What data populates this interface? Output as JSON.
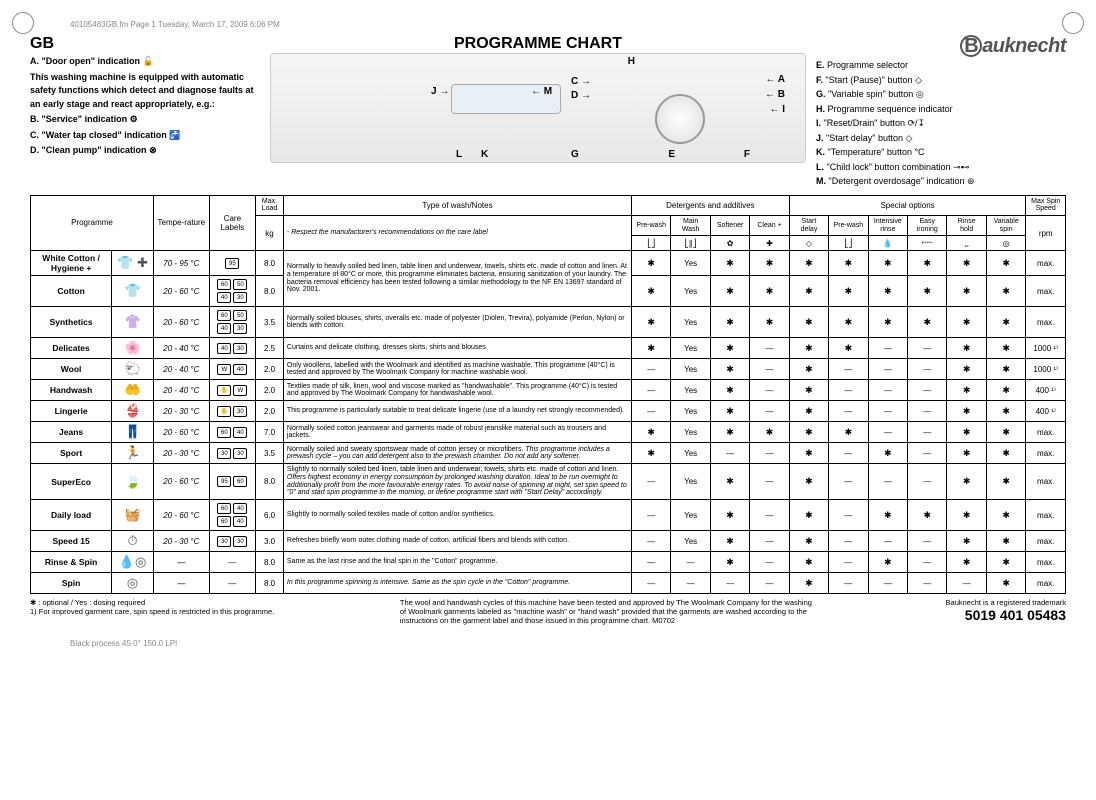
{
  "meta": {
    "header_line": "40105483GB.fm  Page 1  Tuesday, March 17, 2009  6:06 PM",
    "country_code": "GB",
    "title": "PROGRAMME CHART",
    "brand": "Bauknecht",
    "lpi": "Black process 45.0° 150.0 LPI"
  },
  "legend_left": {
    "A": "\"Door open\" indication",
    "intro": "This washing machine is equipped with automatic safety functions which detect and diagnose faults at an early stage and react appropriately, e.g.:",
    "B": "\"Service\" indication",
    "C": "\"Water tap closed\" indication",
    "D": "\"Clean pump\" indication"
  },
  "legend_right": {
    "E": "Programme selector",
    "F": "\"Start (Pause)\" button",
    "G": "\"Variable spin\" button",
    "H": "Programme sequence indicator",
    "I": "\"Reset/Drain\" button",
    "J": "\"Start delay\" button",
    "K": "\"Temperature\" button",
    "L": "\"Child lock\" button combination",
    "M": "\"Detergent overdosage\" indication"
  },
  "table": {
    "headers": {
      "programme": "Programme",
      "temperature": "Tempe-rature",
      "care_labels": "Care Labels",
      "max_load": "Max. Load",
      "max_load_unit": "kg",
      "wash_notes": "Type of wash/Notes",
      "wash_notes_sub": "- Respect the manufacturer's recommendations on the care label",
      "detergents": "Detergents and additives",
      "prewash": "Pre-wash",
      "mainwash": "Main Wash",
      "softener": "Softener",
      "cleanplus": "Clean +",
      "special": "Special options",
      "start_delay": "Start delay",
      "opt_prewash": "Pre-wash",
      "intensive_rinse": "Intensive rinse",
      "easy_ironing": "Easy ironing",
      "rinse_hold": "Rinse hold",
      "variable_spin": "Variable spin",
      "max_spin": "Max Spin Speed",
      "rpm": "rpm"
    },
    "rows": [
      {
        "name": "White Cotton / Hygiene +",
        "icon": "👕 ✚",
        "temp": "70 - 95 °C",
        "care": [
          "95"
        ],
        "load": "8.0",
        "notes": "Normally to heavily soiled bed linen, table linen and underwear, towels, shirts etc. made of cotton and linen.\nAt a temperature of 80°C or more, this programme eliminates bacteria, ensuring sanitization of your laundry. The bacteria removal efficiency has been tested following a similar methodology to the NF EN 13697 standard of Nov. 2001.",
        "cells": [
          "*",
          "Yes",
          "*",
          "*",
          "*",
          "*",
          "*",
          "*",
          "*",
          "*",
          "max."
        ],
        "rowspan": 2
      },
      {
        "name": "Cotton",
        "icon": "👕",
        "temp": "20 - 60 °C",
        "care": [
          "60",
          "50",
          "40",
          "30"
        ],
        "load": "8.0",
        "notes_shared": true,
        "cells": [
          "*",
          "Yes",
          "*",
          "*",
          "*",
          "*",
          "*",
          "*",
          "*",
          "*",
          "max."
        ]
      },
      {
        "name": "Synthetics",
        "icon": "👚",
        "temp": "20 - 60 °C",
        "care": [
          "60",
          "50",
          "40",
          "30"
        ],
        "load": "3.5",
        "notes": "Normally soiled blouses, shirts, overalls etc. made of polyester (Diolen, Trevira), polyamide (Perlon, Nylon) or blends with cotton.",
        "cells": [
          "*",
          "Yes",
          "*",
          "*",
          "*",
          "*",
          "*",
          "*",
          "*",
          "*",
          "max."
        ]
      },
      {
        "name": "Delicates",
        "icon": "🌸",
        "temp": "20 - 40 °C",
        "care": [
          "40",
          "30"
        ],
        "load": "2.5",
        "notes": "Curtains and delicate clothing, dresses skirts, shirts and blouses.",
        "cells": [
          "*",
          "Yes",
          "*",
          "—",
          "*",
          "*",
          "—",
          "—",
          "*",
          "*",
          "1000 ¹⁾"
        ]
      },
      {
        "name": "Wool",
        "icon": "🐑",
        "temp": "20 - 40 °C",
        "care": [
          "W",
          "40"
        ],
        "load": "2.0",
        "notes": "Only woollens, labelled with the Woolmark and identified as machine washable. This programme (40°C) is tested and approved by The Woolmark Company for machine washable wool.",
        "cells": [
          "—",
          "Yes",
          "*",
          "—",
          "*",
          "—",
          "—",
          "—",
          "*",
          "*",
          "1000 ¹⁾"
        ]
      },
      {
        "name": "Handwash",
        "icon": "🤲",
        "temp": "20 - 40 °C",
        "care": [
          "✋",
          "W"
        ],
        "load": "2.0",
        "notes": "Textiles made of silk, linen, wool and viscose marked as \"handwashable\". This programme (40°C) is tested and approved by The Woolmark Company for handwashable wool.",
        "cells": [
          "—",
          "Yes",
          "*",
          "—",
          "*",
          "—",
          "—",
          "—",
          "*",
          "*",
          "400 ¹⁾"
        ]
      },
      {
        "name": "Lingerie",
        "icon": "👙",
        "temp": "20 - 30 °C",
        "care": [
          "✋",
          "30"
        ],
        "load": "2.0",
        "notes": "This programme is particularly suitable to treat delicate lingerie (use of a laundry net strongly recommended).",
        "cells": [
          "—",
          "Yes",
          "*",
          "—",
          "*",
          "—",
          "—",
          "—",
          "*",
          "*",
          "400 ¹⁾"
        ]
      },
      {
        "name": "Jeans",
        "icon": "👖",
        "temp": "20 - 60 °C",
        "care": [
          "60",
          "40"
        ],
        "load": "7.0",
        "notes": "Normally soiled cotton jeanswear and garments made of robust jeanslike material such as trousers and jackets.",
        "cells": [
          "*",
          "Yes",
          "*",
          "*",
          "*",
          "*",
          "—",
          "—",
          "*",
          "*",
          "max."
        ]
      },
      {
        "name": "Sport",
        "icon": "🏃",
        "temp": "20 - 30 °C",
        "care": [
          "30",
          "30"
        ],
        "load": "3.5",
        "notes": "Normally soiled and sweaty sportswear made of cotton jersey or microfibers. This programme includes a prewash cycle – you can add detergent also to the prewash chamber. Do not add any softener.",
        "cells": [
          "*",
          "Yes",
          "—",
          "—",
          "*",
          "—",
          "*",
          "—",
          "*",
          "*",
          "max."
        ]
      },
      {
        "name": "SuperEco",
        "icon": "🍃",
        "temp": "20 - 60 °C",
        "care": [
          "95",
          "60"
        ],
        "load": "8.0",
        "notes": "Slightly to normally soiled bed linen, table linen and underwear, towels, shirts etc. made of cotton and linen. Offers highest economy in energy consumption by prolonged washing duration. Ideal to be run overnight to additionally profit from the more favourable energy rates. To avoid noise of spinning at night, set spin speed to \"0\" and start spin programme in the morning, or define programme start with \"Start Delay\" accordingly.",
        "cells": [
          "—",
          "Yes",
          "*",
          "—",
          "*",
          "—",
          "—",
          "—",
          "*",
          "*",
          "max."
        ]
      },
      {
        "name": "Daily load",
        "icon": "🧺",
        "temp": "20 - 60 °C",
        "care": [
          "60",
          "40",
          "60",
          "40"
        ],
        "load": "6.0",
        "notes": "Slightly to normally soiled textiles made of cotton and/or synthetics.",
        "cells": [
          "—",
          "Yes",
          "*",
          "—",
          "*",
          "—",
          "*",
          "*",
          "*",
          "*",
          "max."
        ]
      },
      {
        "name": "Speed 15",
        "icon": "⏱",
        "temp": "20 - 30 °C",
        "care": [
          "30",
          "30"
        ],
        "load": "3.0",
        "notes": "Refreshes briefly worn outer clothing made of cotton, artificial fibers and blends with cotton.",
        "cells": [
          "—",
          "Yes",
          "*",
          "—",
          "*",
          "—",
          "—",
          "—",
          "*",
          "*",
          "max."
        ]
      },
      {
        "name": "Rinse & Spin",
        "icon": "💧◎",
        "temp": "—",
        "care": [],
        "load": "8.0",
        "notes": "Same as the last rinse and the final spin in the \"Cotton\" programme.",
        "cells": [
          "—",
          "—",
          "*",
          "—",
          "*",
          "—",
          "*",
          "—",
          "*",
          "*",
          "max."
        ]
      },
      {
        "name": "Spin",
        "icon": "◎",
        "temp": "—",
        "care": [],
        "load": "8.0",
        "notes": "In this programme spinning is intensive. Same as the spin cycle in the \"Cotton\" programme.",
        "cells": [
          "—",
          "—",
          "—",
          "—",
          "*",
          "—",
          "—",
          "—",
          "—",
          "*",
          "max."
        ]
      }
    ]
  },
  "footer": {
    "left1": "✱ : optional / Yes : dosing required",
    "left2": "1) For improved garment care, spin speed is restricted in this programme.",
    "mid": "The wool and handwash cycles of this machine have been tested and approved by The Woolmark Company for the washing of Woolmark garments labeled as \"machine wash\" or \"hand wash\" provided that the garments are washed according to the instructions on the garment label and those issued in this programme chart.  M0702",
    "trademark": "Bauknecht is a registered trademark",
    "partno": "5019 401 05483"
  },
  "panel_markers": {
    "C": "C",
    "D": "D",
    "J": "J",
    "M": "M",
    "A": "A",
    "B": "B",
    "I": "I",
    "H": "H",
    "L": "L",
    "K": "K",
    "G": "G",
    "E": "E",
    "F": "F"
  }
}
